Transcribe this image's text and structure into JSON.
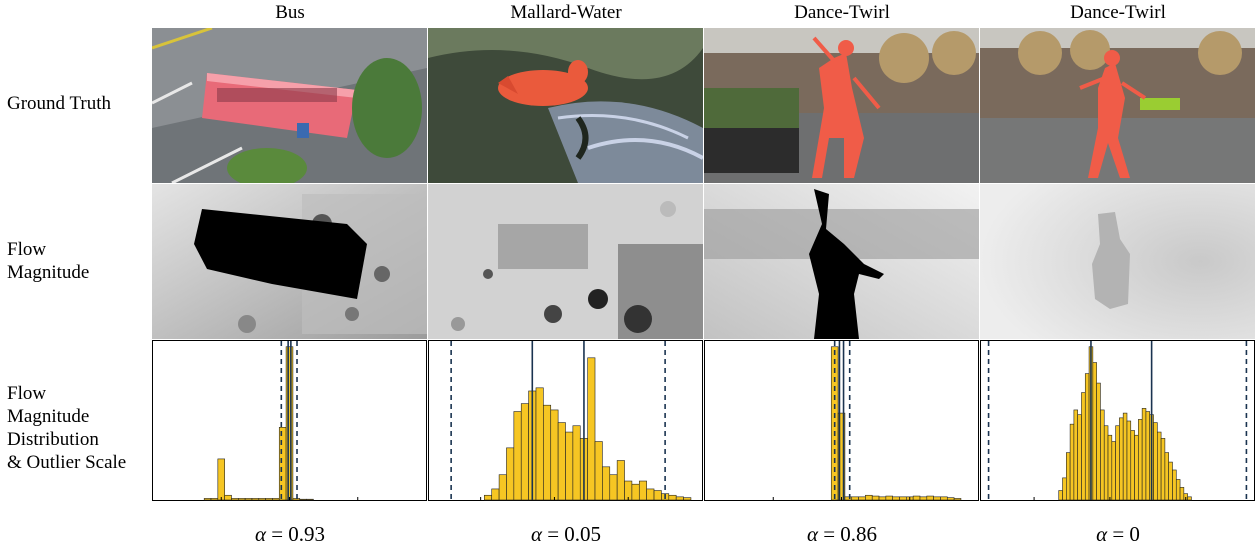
{
  "columns": [
    {
      "title": "Bus",
      "alpha_symbol": "α",
      "alpha_value": "= 0.93"
    },
    {
      "title": "Mallard-Water",
      "alpha_symbol": "α",
      "alpha_value": "= 0.05"
    },
    {
      "title": "Dance-Twirl",
      "alpha_symbol": "α",
      "alpha_value": "= 0.86"
    },
    {
      "title": "Dance-Twirl",
      "alpha_symbol": "α",
      "alpha_value": "= 0"
    }
  ],
  "row_labels": {
    "ground_truth": "Ground Truth",
    "flow_line1": "Flow",
    "flow_line2": "Magnitude",
    "dist_line1": "Flow",
    "dist_line2": "Magnitude",
    "dist_line3": "Distribution",
    "dist_line4": "& Outlier Scale"
  },
  "colors": {
    "bar": "#f6c623",
    "bar_edge": "#222222",
    "solid_line": "#1a3350",
    "dashed_line": "#1a3350",
    "mask": "#f0503c"
  },
  "chart_data": [
    {
      "type": "bar",
      "title": "Bus",
      "xlim": [
        -20,
        20
      ],
      "ticks": [
        -10,
        0,
        10
      ],
      "ylim": [
        0,
        1
      ],
      "bins": [
        {
          "x": -12,
          "y": 0.01
        },
        {
          "x": -11,
          "y": 0.01
        },
        {
          "x": -10,
          "y": 0.26
        },
        {
          "x": -9,
          "y": 0.03
        },
        {
          "x": -8,
          "y": 0.01
        },
        {
          "x": -7,
          "y": 0.01
        },
        {
          "x": -6,
          "y": 0.01
        },
        {
          "x": -5,
          "y": 0.01
        },
        {
          "x": -4,
          "y": 0.01
        },
        {
          "x": -3,
          "y": 0.01
        },
        {
          "x": -2,
          "y": 0.01
        },
        {
          "x": -1,
          "y": 0.46
        },
        {
          "x": 0,
          "y": 0.97
        },
        {
          "x": 1,
          "y": 0.01
        },
        {
          "x": 2,
          "y": 0.005
        },
        {
          "x": 3,
          "y": 0.005
        }
      ],
      "bin_width": 1,
      "solid_lines": [
        -0.2,
        0.2
      ],
      "dashed_lines": [
        -1.2,
        1.1
      ]
    },
    {
      "type": "bar",
      "title": "Mallard-Water",
      "xlim": [
        -17,
        20
      ],
      "ticks": [
        -10,
        0,
        10
      ],
      "ylim": [
        0,
        1
      ],
      "bins": [
        {
          "x": -9,
          "y": 0.03
        },
        {
          "x": -8,
          "y": 0.07
        },
        {
          "x": -7,
          "y": 0.16
        },
        {
          "x": -6,
          "y": 0.33
        },
        {
          "x": -5,
          "y": 0.56
        },
        {
          "x": -4,
          "y": 0.61
        },
        {
          "x": -3,
          "y": 0.69
        },
        {
          "x": -2,
          "y": 0.71
        },
        {
          "x": -1,
          "y": 0.6
        },
        {
          "x": 0,
          "y": 0.57
        },
        {
          "x": 1,
          "y": 0.49
        },
        {
          "x": 2,
          "y": 0.43
        },
        {
          "x": 3,
          "y": 0.47
        },
        {
          "x": 4,
          "y": 0.39
        },
        {
          "x": 5,
          "y": 0.9
        },
        {
          "x": 6,
          "y": 0.37
        },
        {
          "x": 7,
          "y": 0.21
        },
        {
          "x": 8,
          "y": 0.16
        },
        {
          "x": 9,
          "y": 0.25
        },
        {
          "x": 10,
          "y": 0.12
        },
        {
          "x": 11,
          "y": 0.1
        },
        {
          "x": 12,
          "y": 0.12
        },
        {
          "x": 13,
          "y": 0.07
        },
        {
          "x": 14,
          "y": 0.06
        },
        {
          "x": 15,
          "y": 0.04
        },
        {
          "x": 16,
          "y": 0.03
        },
        {
          "x": 17,
          "y": 0.02
        },
        {
          "x": 18,
          "y": 0.015
        }
      ],
      "bin_width": 1,
      "solid_lines": [
        -3,
        4
      ],
      "dashed_lines": [
        -14,
        15
      ]
    },
    {
      "type": "bar",
      "title": "Dance-Twirl",
      "xlim": [
        -20,
        20
      ],
      "ticks": [
        -10,
        0,
        10
      ],
      "ylim": [
        0,
        1
      ],
      "bins": [
        {
          "x": -1,
          "y": 0.97
        },
        {
          "x": 0,
          "y": 0.55
        },
        {
          "x": 1,
          "y": 0.02
        },
        {
          "x": 2,
          "y": 0.02
        },
        {
          "x": 3,
          "y": 0.02
        },
        {
          "x": 4,
          "y": 0.03
        },
        {
          "x": 5,
          "y": 0.025
        },
        {
          "x": 6,
          "y": 0.02
        },
        {
          "x": 7,
          "y": 0.025
        },
        {
          "x": 8,
          "y": 0.02
        },
        {
          "x": 9,
          "y": 0.02
        },
        {
          "x": 10,
          "y": 0.02
        },
        {
          "x": 11,
          "y": 0.025
        },
        {
          "x": 12,
          "y": 0.02
        },
        {
          "x": 13,
          "y": 0.025
        },
        {
          "x": 14,
          "y": 0.02
        },
        {
          "x": 15,
          "y": 0.02
        },
        {
          "x": 16,
          "y": 0.015
        },
        {
          "x": 17,
          "y": 0.01
        }
      ],
      "bin_width": 1,
      "solid_lines": [
        -0.3,
        0.3
      ],
      "dashed_lines": [
        -1.0,
        1.2
      ]
    },
    {
      "type": "bar",
      "title": "Dance-Twirl",
      "xlim": [
        -34,
        38
      ],
      "ticks": [
        -20,
        0,
        20
      ],
      "ylim": [
        0,
        1
      ],
      "bins": [
        {
          "x": -13,
          "y": 0.06
        },
        {
          "x": -12,
          "y": 0.14
        },
        {
          "x": -11,
          "y": 0.3
        },
        {
          "x": -10,
          "y": 0.48
        },
        {
          "x": -9,
          "y": 0.57
        },
        {
          "x": -8,
          "y": 0.54
        },
        {
          "x": -7,
          "y": 0.68
        },
        {
          "x": -6,
          "y": 0.8
        },
        {
          "x": -5,
          "y": 0.97
        },
        {
          "x": -4,
          "y": 0.87
        },
        {
          "x": -3,
          "y": 0.74
        },
        {
          "x": -2,
          "y": 0.57
        },
        {
          "x": -1,
          "y": 0.47
        },
        {
          "x": 0,
          "y": 0.41
        },
        {
          "x": 1,
          "y": 0.37
        },
        {
          "x": 2,
          "y": 0.47
        },
        {
          "x": 3,
          "y": 0.52
        },
        {
          "x": 4,
          "y": 0.55
        },
        {
          "x": 5,
          "y": 0.5
        },
        {
          "x": 6,
          "y": 0.44
        },
        {
          "x": 7,
          "y": 0.41
        },
        {
          "x": 8,
          "y": 0.51
        },
        {
          "x": 9,
          "y": 0.58
        },
        {
          "x": 10,
          "y": 0.56
        },
        {
          "x": 11,
          "y": 0.54
        },
        {
          "x": 12,
          "y": 0.49
        },
        {
          "x": 13,
          "y": 0.43
        },
        {
          "x": 14,
          "y": 0.39
        },
        {
          "x": 15,
          "y": 0.3
        },
        {
          "x": 16,
          "y": 0.24
        },
        {
          "x": 17,
          "y": 0.19
        },
        {
          "x": 18,
          "y": 0.13
        },
        {
          "x": 19,
          "y": 0.08
        },
        {
          "x": 20,
          "y": 0.04
        },
        {
          "x": 21,
          "y": 0.02
        }
      ],
      "bin_width": 1,
      "solid_lines": [
        -5,
        11
      ],
      "dashed_lines": [
        -32,
        36
      ]
    }
  ]
}
